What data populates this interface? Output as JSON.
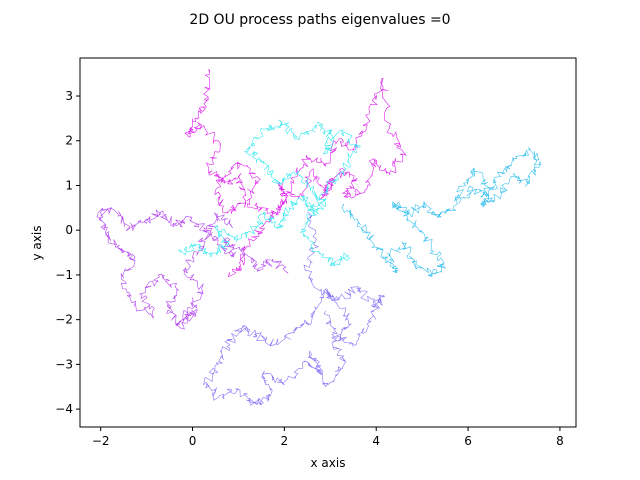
{
  "chart_data": {
    "type": "line",
    "title": "2D OU process paths eigenvalues =0",
    "xlabel": "x axis",
    "ylabel": "y axis",
    "xlim": [
      -2.45,
      8.35
    ],
    "ylim": [
      -4.4,
      3.85
    ],
    "xticks": [
      -2,
      0,
      2,
      4,
      6,
      8
    ],
    "xtick_labels": [
      "−2",
      "0",
      "2",
      "4",
      "6",
      "8"
    ],
    "yticks": [
      -4,
      -3,
      -2,
      -1,
      0,
      1,
      2,
      3
    ],
    "ytick_labels": [
      "−4",
      "−3",
      "−2",
      "−1",
      "0",
      "1",
      "2",
      "3"
    ],
    "grid": false,
    "legend": "none",
    "series": [
      {
        "color": "#e020f0",
        "x": [
          0.35,
          0.3,
          0.05,
          -0.1,
          0.2,
          0.6,
          0.35,
          0.7,
          1.0,
          1.15,
          0.75,
          0.5,
          0.95,
          1.4,
          1.2,
          1.75,
          2.05,
          1.85,
          2.3,
          2.6,
          2.85,
          3.05,
          2.8,
          3.2,
          3.55,
          3.3,
          3.75,
          3.95,
          4.3,
          4.6,
          4.3,
          4.15,
          3.85,
          3.5,
          3.2,
          2.9,
          2.5,
          2.2,
          1.9,
          1.55,
          1.2,
          1.05,
          0.8
        ],
        "y": [
          3.6,
          2.9,
          2.5,
          2.1,
          2.35,
          1.9,
          1.4,
          1.05,
          1.2,
          0.6,
          0.4,
          0.9,
          1.5,
          1.2,
          0.6,
          0.4,
          0.65,
          1.05,
          0.7,
          1.35,
          0.9,
          1.1,
          0.7,
          1.35,
          1.1,
          0.75,
          0.9,
          1.6,
          1.25,
          1.7,
          2.3,
          3.4,
          2.6,
          1.8,
          2.05,
          1.5,
          1.6,
          1.1,
          0.5,
          0.1,
          -0.35,
          -0.8,
          -1.0
        ]
      },
      {
        "color": "#b448f0",
        "x": [
          0.85,
          0.55,
          0.3,
          0.15,
          -0.2,
          0.2,
          0.0,
          -0.3,
          0.05,
          -0.25,
          -0.55,
          -0.35,
          -0.75,
          -1.1,
          -0.85,
          -1.35,
          -1.55,
          -1.25,
          -1.6,
          -1.9,
          -2.05,
          -1.7,
          -1.35,
          -1.05,
          -0.7,
          -0.35,
          -0.05,
          0.25,
          0.55,
          0.9,
          0.7,
          1.1,
          1.45,
          1.75,
          2.05
        ],
        "y": [
          0.1,
          0.35,
          -0.05,
          -0.45,
          -0.9,
          -1.3,
          -1.75,
          -2.1,
          -1.8,
          -2.2,
          -1.7,
          -1.3,
          -1.0,
          -1.45,
          -1.95,
          -1.55,
          -1.1,
          -0.6,
          -0.4,
          -0.05,
          0.4,
          0.45,
          0.05,
          0.2,
          0.4,
          0.1,
          0.3,
          0.0,
          -0.3,
          -0.6,
          -0.2,
          -0.45,
          -0.9,
          -0.65,
          -0.95
        ]
      },
      {
        "color": "#8878f8",
        "x": [
          2.5,
          2.7,
          2.45,
          2.85,
          2.6,
          2.2,
          1.8,
          1.4,
          1.05,
          0.75,
          0.55,
          0.3,
          0.55,
          0.95,
          1.4,
          1.7,
          1.55,
          2.0,
          2.4,
          2.8,
          2.55,
          2.9,
          3.3,
          3.05,
          3.45,
          3.15,
          2.85,
          3.2,
          3.6,
          3.95,
          4.15,
          3.8,
          3.5,
          3.1,
          2.9
        ],
        "y": [
          0.4,
          -0.2,
          -0.9,
          -1.5,
          -2.0,
          -2.3,
          -2.55,
          -2.35,
          -2.2,
          -2.6,
          -3.0,
          -3.4,
          -3.75,
          -3.55,
          -3.9,
          -3.7,
          -3.2,
          -3.45,
          -2.95,
          -3.2,
          -2.7,
          -3.5,
          -3.0,
          -2.5,
          -2.1,
          -1.65,
          -1.35,
          -1.55,
          -1.3,
          -1.7,
          -1.5,
          -2.1,
          -2.6,
          -2.3,
          -1.8
        ]
      },
      {
        "color": "#38e8f0",
        "x": [
          -0.25,
          0.05,
          0.4,
          0.75,
          0.5,
          0.9,
          1.3,
          1.6,
          1.9,
          2.1,
          2.4,
          2.65,
          2.9,
          2.55,
          2.2,
          1.85,
          1.55,
          1.2,
          1.55,
          1.95,
          2.3,
          2.7,
          3.05,
          2.85,
          3.25,
          3.6,
          3.3,
          2.95,
          2.6,
          2.35,
          2.75,
          3.1,
          3.4
        ],
        "y": [
          -0.5,
          -0.35,
          -0.6,
          -0.3,
          0.05,
          -0.2,
          -0.05,
          0.35,
          0.1,
          0.5,
          0.75,
          0.35,
          0.6,
          1.0,
          1.3,
          1.05,
          1.5,
          1.75,
          2.25,
          2.4,
          2.05,
          2.35,
          2.1,
          1.7,
          2.2,
          1.9,
          1.4,
          0.95,
          0.5,
          -0.05,
          -0.5,
          -0.8,
          -0.55
        ]
      },
      {
        "color": "#38c0f0",
        "x": [
          3.3,
          3.6,
          3.9,
          4.2,
          4.45,
          4.3,
          4.6,
          4.85,
          5.15,
          5.45,
          5.2,
          4.9,
          4.6,
          4.4,
          4.7,
          5.05,
          5.35,
          5.7,
          5.9,
          6.15,
          6.45,
          6.3,
          6.65,
          7.0,
          7.3,
          7.55,
          7.35,
          7.0,
          6.7,
          6.4,
          6.1,
          5.8
        ],
        "y": [
          0.55,
          0.2,
          -0.25,
          -0.6,
          -0.95,
          -0.55,
          -0.3,
          -0.7,
          -1.0,
          -0.8,
          -0.35,
          0.05,
          0.4,
          0.6,
          0.35,
          0.6,
          0.3,
          0.55,
          1.05,
          1.35,
          0.95,
          0.55,
          0.75,
          1.25,
          1.05,
          1.5,
          1.8,
          1.55,
          1.2,
          0.75,
          0.95,
          0.6
        ]
      }
    ]
  }
}
